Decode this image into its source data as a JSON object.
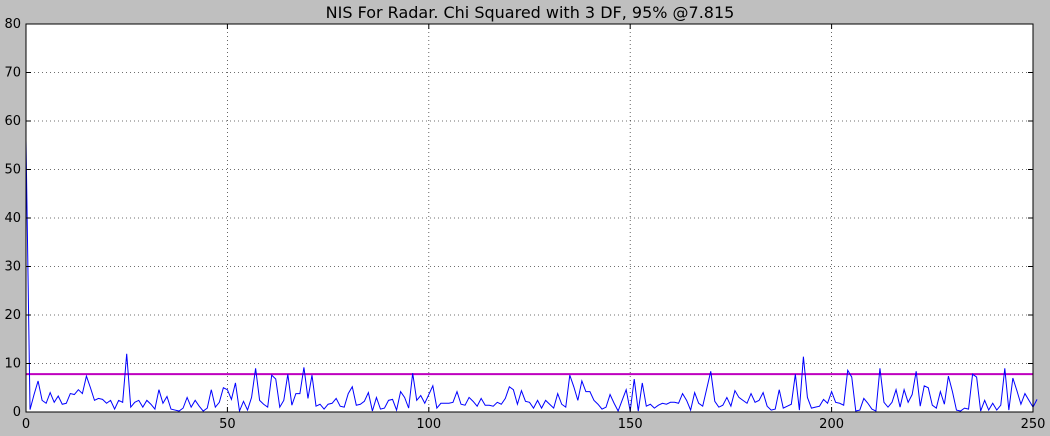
{
  "chart_data": {
    "type": "line",
    "title": "NIS For Radar. Chi Squared with 3 DF, 95% @7.815",
    "xlabel": "",
    "ylabel": "",
    "xlim": [
      0,
      250
    ],
    "ylim": [
      0,
      80
    ],
    "xticks": [
      0,
      50,
      100,
      150,
      200,
      250
    ],
    "yticks": [
      0,
      10,
      20,
      30,
      40,
      50,
      60,
      70,
      80
    ],
    "grid": true,
    "colors": {
      "background": "#bfbfbf",
      "plot_area": "#ffffff",
      "series_line": "#0000ff",
      "threshold_line": "#bf00bf"
    },
    "series": [
      {
        "color": "#0000ff",
        "y": [
          56.0,
          0.5,
          3.6,
          6.4,
          2.4,
          1.8,
          4.0,
          2.0,
          3.3,
          1.6,
          1.8,
          3.8,
          3.6,
          4.6,
          3.8,
          7.4,
          5.0,
          2.4,
          2.8,
          2.6,
          1.8,
          2.4,
          0.6,
          2.4,
          2.0,
          12.0,
          1.0,
          2.0,
          2.4,
          1.0,
          2.4,
          1.6,
          0.6,
          4.6,
          1.8,
          3.2,
          0.6,
          0.4,
          0.2,
          0.8,
          3.0,
          1.0,
          2.4,
          1.2,
          0.2,
          0.8,
          4.6,
          1.0,
          2.0,
          5.0,
          4.6,
          2.6,
          6.0,
          0.2,
          2.2,
          0.4,
          3.0,
          9.0,
          2.4,
          1.6,
          1.0,
          7.6,
          6.8,
          1.0,
          2.4,
          7.8,
          1.4,
          3.8,
          3.8,
          9.2,
          2.8,
          7.6,
          1.2,
          1.6,
          0.6,
          1.6,
          1.8,
          2.8,
          1.2,
          1.0,
          3.8,
          5.2,
          1.4,
          1.6,
          2.2,
          4.0,
          0.2,
          3.0,
          0.6,
          0.8,
          2.4,
          2.6,
          0.4,
          4.2,
          3.0,
          0.8,
          8.0,
          2.4,
          3.4,
          1.8,
          3.6,
          5.4,
          0.8,
          1.8,
          1.8,
          1.8,
          2.0,
          4.2,
          1.6,
          1.4,
          3.0,
          2.2,
          1.2,
          2.8,
          1.4,
          1.4,
          1.2,
          2.0,
          1.6,
          2.8,
          5.2,
          4.6,
          1.6,
          4.4,
          2.2,
          2.0,
          0.8,
          2.4,
          0.8,
          2.4,
          1.6,
          0.8,
          3.8,
          1.6,
          1.0,
          7.6,
          5.2,
          2.4,
          6.4,
          4.2,
          4.2,
          2.4,
          1.6,
          0.6,
          1.0,
          3.6,
          1.8,
          0.2,
          2.4,
          4.6,
          0.2,
          6.8,
          0.2,
          6.0,
          1.2,
          1.6,
          0.8,
          1.4,
          1.8,
          1.6,
          2.0,
          2.0,
          1.8,
          3.8,
          2.4,
          0.4,
          4.0,
          1.8,
          1.2,
          4.8,
          8.4,
          2.2,
          1.0,
          1.4,
          3.0,
          1.2,
          4.4,
          3.0,
          2.4,
          1.8,
          3.8,
          2.0,
          2.4,
          4.0,
          1.2,
          0.4,
          0.6,
          4.6,
          0.8,
          1.2,
          1.6,
          7.8,
          0.4,
          11.4,
          3.0,
          0.8,
          1.0,
          1.2,
          2.6,
          1.8,
          4.2,
          2.0,
          1.8,
          1.4,
          8.6,
          7.2,
          0.2,
          0.4,
          2.8,
          1.8,
          0.6,
          0.2,
          9.0,
          2.0,
          1.0,
          2.0,
          4.6,
          1.0,
          4.6,
          2.0,
          3.6,
          8.4,
          1.2,
          5.4,
          5.0,
          1.4,
          0.8,
          4.2,
          1.6,
          7.4,
          4.2,
          0.4,
          0.2,
          0.8,
          0.6,
          7.8,
          7.2,
          0.2,
          2.4,
          0.4,
          1.8,
          0.4,
          1.4,
          9.0,
          0.4,
          7.0,
          4.4,
          1.6,
          3.8,
          2.4,
          1.0,
          2.6
        ]
      },
      {
        "color": "#bf00bf",
        "x": [
          0,
          250
        ],
        "y": [
          7.815,
          7.815
        ]
      }
    ]
  }
}
